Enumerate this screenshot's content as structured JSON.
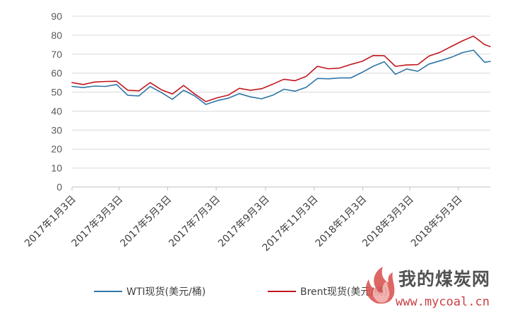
{
  "chart_data": {
    "type": "line",
    "title": "",
    "xlabel": "",
    "ylabel": "",
    "ylim": [
      0,
      90
    ],
    "yticks": [
      0,
      10,
      20,
      30,
      40,
      50,
      60,
      70,
      80,
      90
    ],
    "grid": true,
    "legend_position": "bottom",
    "xlim": [
      "2017-01-03",
      "2018-06-12"
    ],
    "x_tick_dates": [
      "2017-01-03",
      "2017-03-03",
      "2017-05-03",
      "2017-07-03",
      "2017-09-03",
      "2017-11-03",
      "2018-01-03",
      "2018-03-03",
      "2018-05-03"
    ],
    "x_tick_labels": [
      "2017年1月3日",
      "2017年3月3日",
      "2017年5月3日",
      "2017年7月3日",
      "2017年9月3日",
      "2017年11月3日",
      "2018年1月3日",
      "2018年3月3日",
      "2018年5月3日"
    ],
    "x": [
      "2017-01-03",
      "2017-01-17",
      "2017-01-31",
      "2017-02-14",
      "2017-02-28",
      "2017-03-14",
      "2017-03-28",
      "2017-04-11",
      "2017-04-25",
      "2017-05-09",
      "2017-05-23",
      "2017-06-06",
      "2017-06-20",
      "2017-07-04",
      "2017-07-18",
      "2017-08-01",
      "2017-08-15",
      "2017-08-29",
      "2017-09-12",
      "2017-09-26",
      "2017-10-10",
      "2017-10-24",
      "2017-11-07",
      "2017-11-21",
      "2017-12-05",
      "2017-12-19",
      "2018-01-02",
      "2018-01-16",
      "2018-01-30",
      "2018-02-13",
      "2018-02-27",
      "2018-03-13",
      "2018-03-27",
      "2018-04-10",
      "2018-04-24",
      "2018-05-08",
      "2018-05-22",
      "2018-06-05",
      "2018-06-12"
    ],
    "series": [
      {
        "name": "WTI现货(美元/桶)",
        "color": "#2e75a6",
        "values": [
          53.0,
          52.4,
          53.2,
          53.0,
          54.0,
          48.3,
          48.0,
          53.0,
          49.8,
          46.2,
          51.0,
          48.0,
          43.5,
          45.5,
          46.8,
          49.2,
          47.5,
          46.5,
          48.4,
          51.5,
          50.5,
          52.5,
          57.2,
          57.0,
          57.5,
          57.5,
          60.4,
          63.6,
          66.0,
          59.4,
          62.2,
          61.0,
          64.8,
          66.5,
          68.3,
          70.8,
          72.1,
          65.7,
          66.2
        ]
      },
      {
        "name": "Brent现货(美元/桶)",
        "color": "#c0171d",
        "values": [
          55.0,
          54.0,
          55.3,
          55.6,
          55.7,
          51.0,
          50.7,
          55.0,
          51.3,
          49.0,
          53.5,
          49.0,
          45.0,
          47.0,
          48.4,
          52.0,
          51.0,
          51.8,
          54.2,
          56.8,
          56.0,
          58.3,
          63.6,
          62.3,
          62.7,
          64.6,
          66.2,
          69.3,
          69.2,
          63.6,
          64.3,
          64.5,
          69.0,
          71.0,
          74.0,
          77.0,
          79.5,
          75.0,
          74.0
        ]
      }
    ],
    "legend": [
      {
        "label": "WTI现货(美元/桶)",
        "color": "#2e75a6"
      },
      {
        "label": "Brent现货(美元/桶)",
        "color": "#c0171d"
      }
    ]
  },
  "watermark": {
    "site_name": "我的煤炭网",
    "url": "www.mycoal.cn"
  }
}
